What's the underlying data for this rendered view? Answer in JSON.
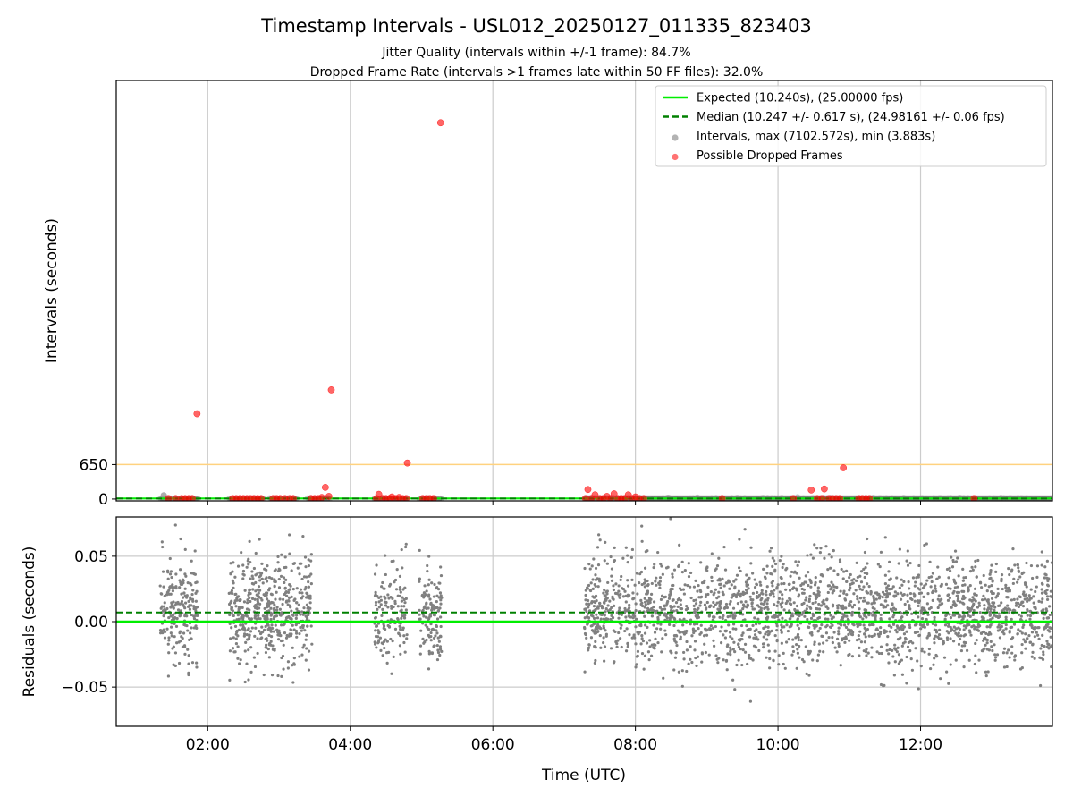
{
  "figure": {
    "title": "Timestamp Intervals - USL012_20250127_011335_823403",
    "subtitle_1": "Jitter Quality (intervals within +/-1 frame): 84.7%",
    "subtitle_2": "Dropped Frame Rate (intervals >1 frames late within 50 FF files): 32.0%"
  },
  "colors": {
    "expected": "#00ee00",
    "median": "#008000",
    "intervals": "#808080",
    "dropped": "#ff0000",
    "threshold": "#ffd27f",
    "grid": "#cccccc"
  },
  "chart_data": [
    {
      "type": "scatter",
      "ylabel": "Intervals (seconds)",
      "xlim": [
        "00:43",
        "13:51"
      ],
      "ylim": [
        -35,
        7900
      ],
      "y_ticks": [
        {
          "value": 0,
          "label": "0"
        },
        {
          "value": 650,
          "label": "650"
        }
      ],
      "x_ticks": [
        "02:00",
        "04:00",
        "06:00",
        "08:00",
        "10:00",
        "12:00"
      ],
      "grid": "x",
      "legend_placement": "top-right",
      "legend": [
        {
          "label": "Expected (10.240s), (25.00000 fps)",
          "kind": "line-solid",
          "color": "#00ee00"
        },
        {
          "label": "Median (10.247 +/- 0.617 s), (24.98161 +/- 0.06 fps)",
          "kind": "line-dashed",
          "color": "#008000"
        },
        {
          "label": "Intervals, max (7102.572s), min (3.883s)",
          "kind": "dot",
          "color": "#a0a0a0"
        },
        {
          "label": "Possible Dropped Frames",
          "kind": "dot",
          "color": "#ff5050"
        }
      ],
      "expected_interval": 10.24,
      "median_interval": 10.247,
      "threshold": 650,
      "interval_segments": [
        [
          "01:20",
          "01:52"
        ],
        [
          "02:18",
          "02:47"
        ],
        [
          "02:52",
          "03:15"
        ],
        [
          "03:24",
          "03:43"
        ],
        [
          "04:20",
          "04:48"
        ],
        [
          "04:58",
          "05:17"
        ],
        [
          "07:17",
          "13:51"
        ]
      ],
      "dropped_frames": [
        {
          "t": "01:27",
          "y": 10
        },
        {
          "t": "01:33",
          "y": 10
        },
        {
          "t": "01:38",
          "y": 10
        },
        {
          "t": "01:41",
          "y": 10
        },
        {
          "t": "01:44",
          "y": 10
        },
        {
          "t": "01:47",
          "y": 10
        },
        {
          "t": "01:51",
          "y": 1610
        },
        {
          "t": "02:21",
          "y": 10
        },
        {
          "t": "02:24",
          "y": 10
        },
        {
          "t": "02:27",
          "y": 10
        },
        {
          "t": "02:30",
          "y": 10
        },
        {
          "t": "02:33",
          "y": 10
        },
        {
          "t": "02:36",
          "y": 10
        },
        {
          "t": "02:39",
          "y": 10
        },
        {
          "t": "02:42",
          "y": 10
        },
        {
          "t": "02:45",
          "y": 10
        },
        {
          "t": "02:55",
          "y": 10
        },
        {
          "t": "02:58",
          "y": 10
        },
        {
          "t": "03:01",
          "y": 10
        },
        {
          "t": "03:05",
          "y": 10
        },
        {
          "t": "03:09",
          "y": 10
        },
        {
          "t": "03:12",
          "y": 10
        },
        {
          "t": "03:27",
          "y": 10
        },
        {
          "t": "03:30",
          "y": 10
        },
        {
          "t": "03:33",
          "y": 10
        },
        {
          "t": "03:36",
          "y": 30
        },
        {
          "t": "03:39",
          "y": 220
        },
        {
          "t": "03:42",
          "y": 50
        },
        {
          "t": "03:44",
          "y": 2060
        },
        {
          "t": "04:22",
          "y": 10
        },
        {
          "t": "04:24",
          "y": 90
        },
        {
          "t": "04:27",
          "y": 10
        },
        {
          "t": "04:30",
          "y": 10
        },
        {
          "t": "04:33",
          "y": 10
        },
        {
          "t": "04:35",
          "y": 40
        },
        {
          "t": "04:38",
          "y": 10
        },
        {
          "t": "04:41",
          "y": 30
        },
        {
          "t": "04:44",
          "y": 10
        },
        {
          "t": "04:47",
          "y": 10
        },
        {
          "t": "04:48",
          "y": 680
        },
        {
          "t": "05:01",
          "y": 10
        },
        {
          "t": "05:04",
          "y": 10
        },
        {
          "t": "05:07",
          "y": 10
        },
        {
          "t": "05:10",
          "y": 10
        },
        {
          "t": "05:16",
          "y": 7102
        },
        {
          "t": "07:18",
          "y": 10
        },
        {
          "t": "07:20",
          "y": 180
        },
        {
          "t": "07:23",
          "y": 10
        },
        {
          "t": "07:26",
          "y": 80
        },
        {
          "t": "07:30",
          "y": 10
        },
        {
          "t": "07:33",
          "y": 10
        },
        {
          "t": "07:36",
          "y": 50
        },
        {
          "t": "07:39",
          "y": 10
        },
        {
          "t": "07:42",
          "y": 100
        },
        {
          "t": "07:45",
          "y": 10
        },
        {
          "t": "07:48",
          "y": 10
        },
        {
          "t": "07:51",
          "y": 10
        },
        {
          "t": "07:54",
          "y": 80
        },
        {
          "t": "07:57",
          "y": 10
        },
        {
          "t": "08:00",
          "y": 40
        },
        {
          "t": "08:03",
          "y": 10
        },
        {
          "t": "08:07",
          "y": 10
        },
        {
          "t": "09:13",
          "y": 10
        },
        {
          "t": "10:13",
          "y": 10
        },
        {
          "t": "10:28",
          "y": 170
        },
        {
          "t": "10:33",
          "y": 10
        },
        {
          "t": "10:37",
          "y": 10
        },
        {
          "t": "10:39",
          "y": 190
        },
        {
          "t": "10:43",
          "y": 10
        },
        {
          "t": "10:46",
          "y": 10
        },
        {
          "t": "10:49",
          "y": 10
        },
        {
          "t": "10:52",
          "y": 10
        },
        {
          "t": "10:55",
          "y": 590
        },
        {
          "t": "11:08",
          "y": 10
        },
        {
          "t": "11:11",
          "y": 10
        },
        {
          "t": "11:14",
          "y": 10
        },
        {
          "t": "11:17",
          "y": 10
        },
        {
          "t": "12:45",
          "y": 10
        }
      ]
    },
    {
      "type": "scatter",
      "xlabel": "Time (UTC)",
      "ylabel": "Residuals (seconds)",
      "xlim": [
        "00:43",
        "13:51"
      ],
      "ylim": [
        -0.08,
        0.08
      ],
      "y_ticks": [
        {
          "value": 0.05,
          "label": "0.05"
        },
        {
          "value": 0.0,
          "label": "0.00"
        },
        {
          "value": -0.05,
          "label": "−0.05"
        }
      ],
      "x_ticks": [
        "02:00",
        "04:00",
        "06:00",
        "08:00",
        "10:00",
        "12:00"
      ],
      "grid": "both",
      "expected_residual": 0.0,
      "median_residual": 0.007,
      "residual_spread": 0.02,
      "residual_segments": [
        {
          "start": "01:20",
          "end": "01:52",
          "count": 220
        },
        {
          "start": "02:18",
          "end": "03:28",
          "count": 520
        },
        {
          "start": "04:20",
          "end": "04:48",
          "count": 150
        },
        {
          "start": "04:58",
          "end": "05:17",
          "count": 130
        },
        {
          "start": "07:17",
          "end": "13:51",
          "count": 2300
        }
      ]
    }
  ]
}
